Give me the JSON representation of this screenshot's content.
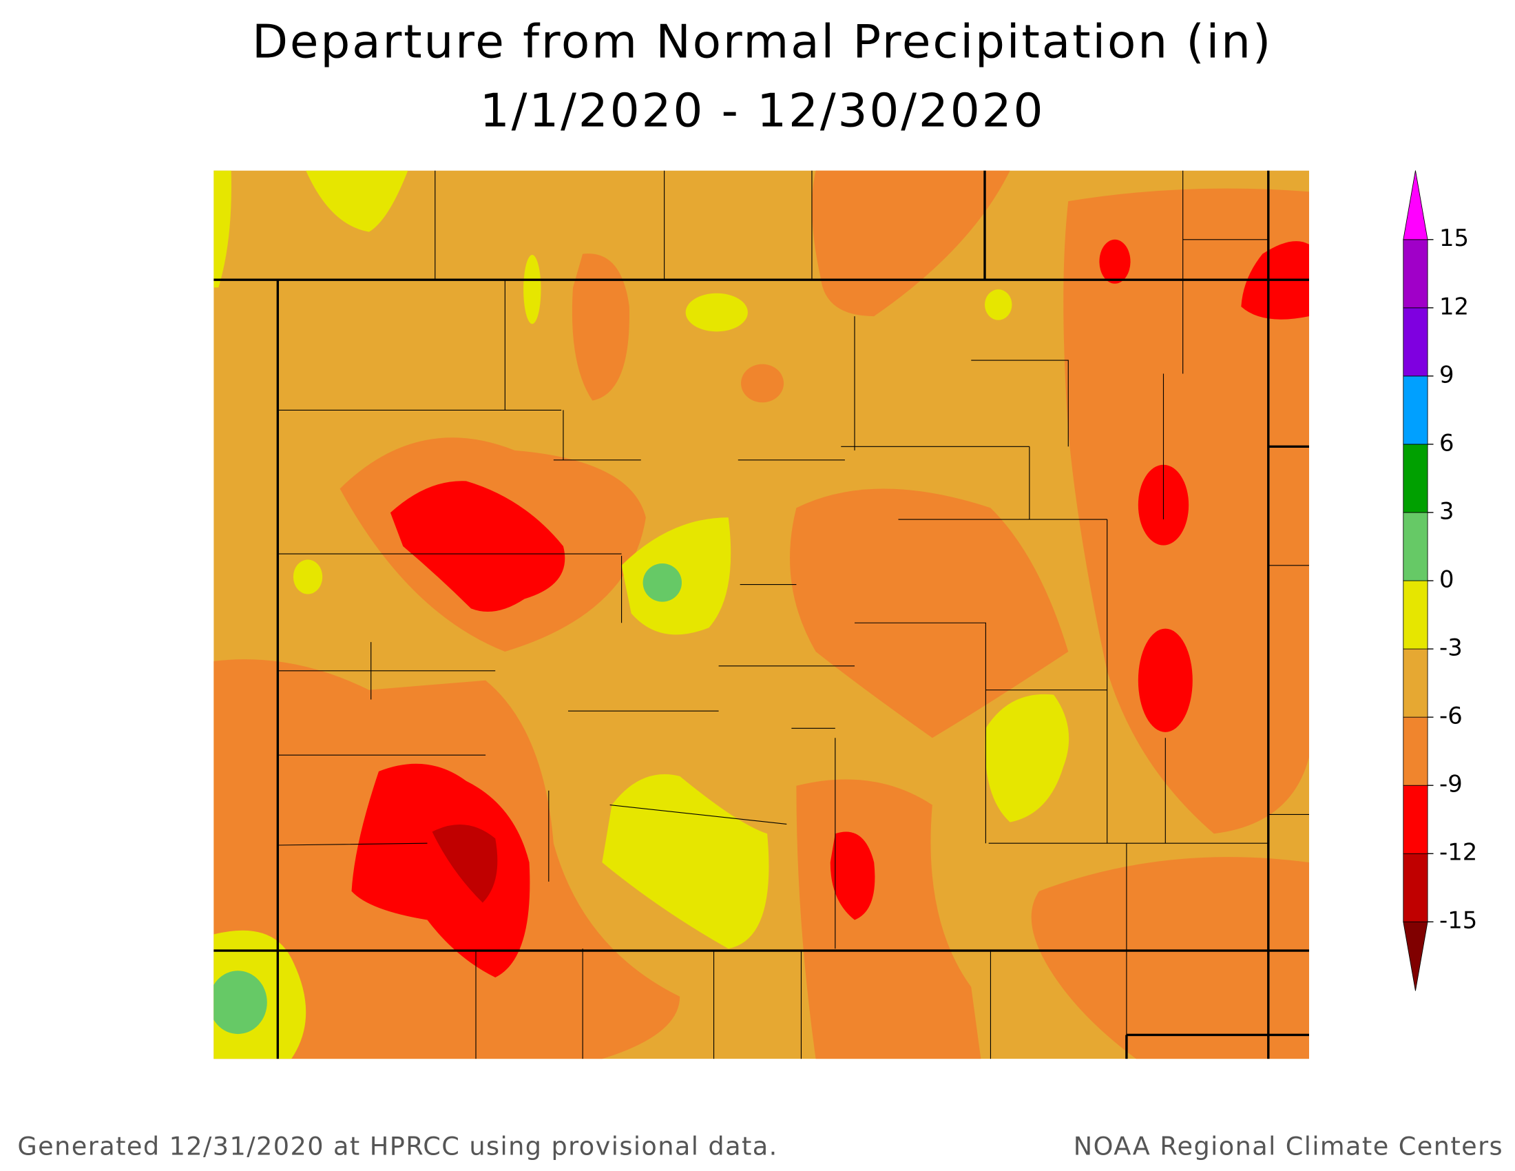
{
  "header": {
    "title": "Departure from Normal Precipitation (in)",
    "subtitle": "1/1/2020 - 12/30/2020"
  },
  "legend": {
    "lim": [
      -15,
      15
    ],
    "ticks": [
      -15,
      -12,
      -9,
      -6,
      -3,
      0,
      3,
      6,
      9,
      12,
      15
    ],
    "colors": [
      "#800000",
      "#c00000",
      "#ff0000",
      "#f0852d",
      "#e6a832",
      "#e6e600",
      "#66c966",
      "#00a000",
      "#00a0ff",
      "#7f00e0",
      "#a000c8",
      "#ff00ff"
    ]
  },
  "footer": {
    "left": "Generated 12/31/2020 at HPRCC using provisional data.",
    "right": "NOAA Regional Climate Centers"
  }
}
